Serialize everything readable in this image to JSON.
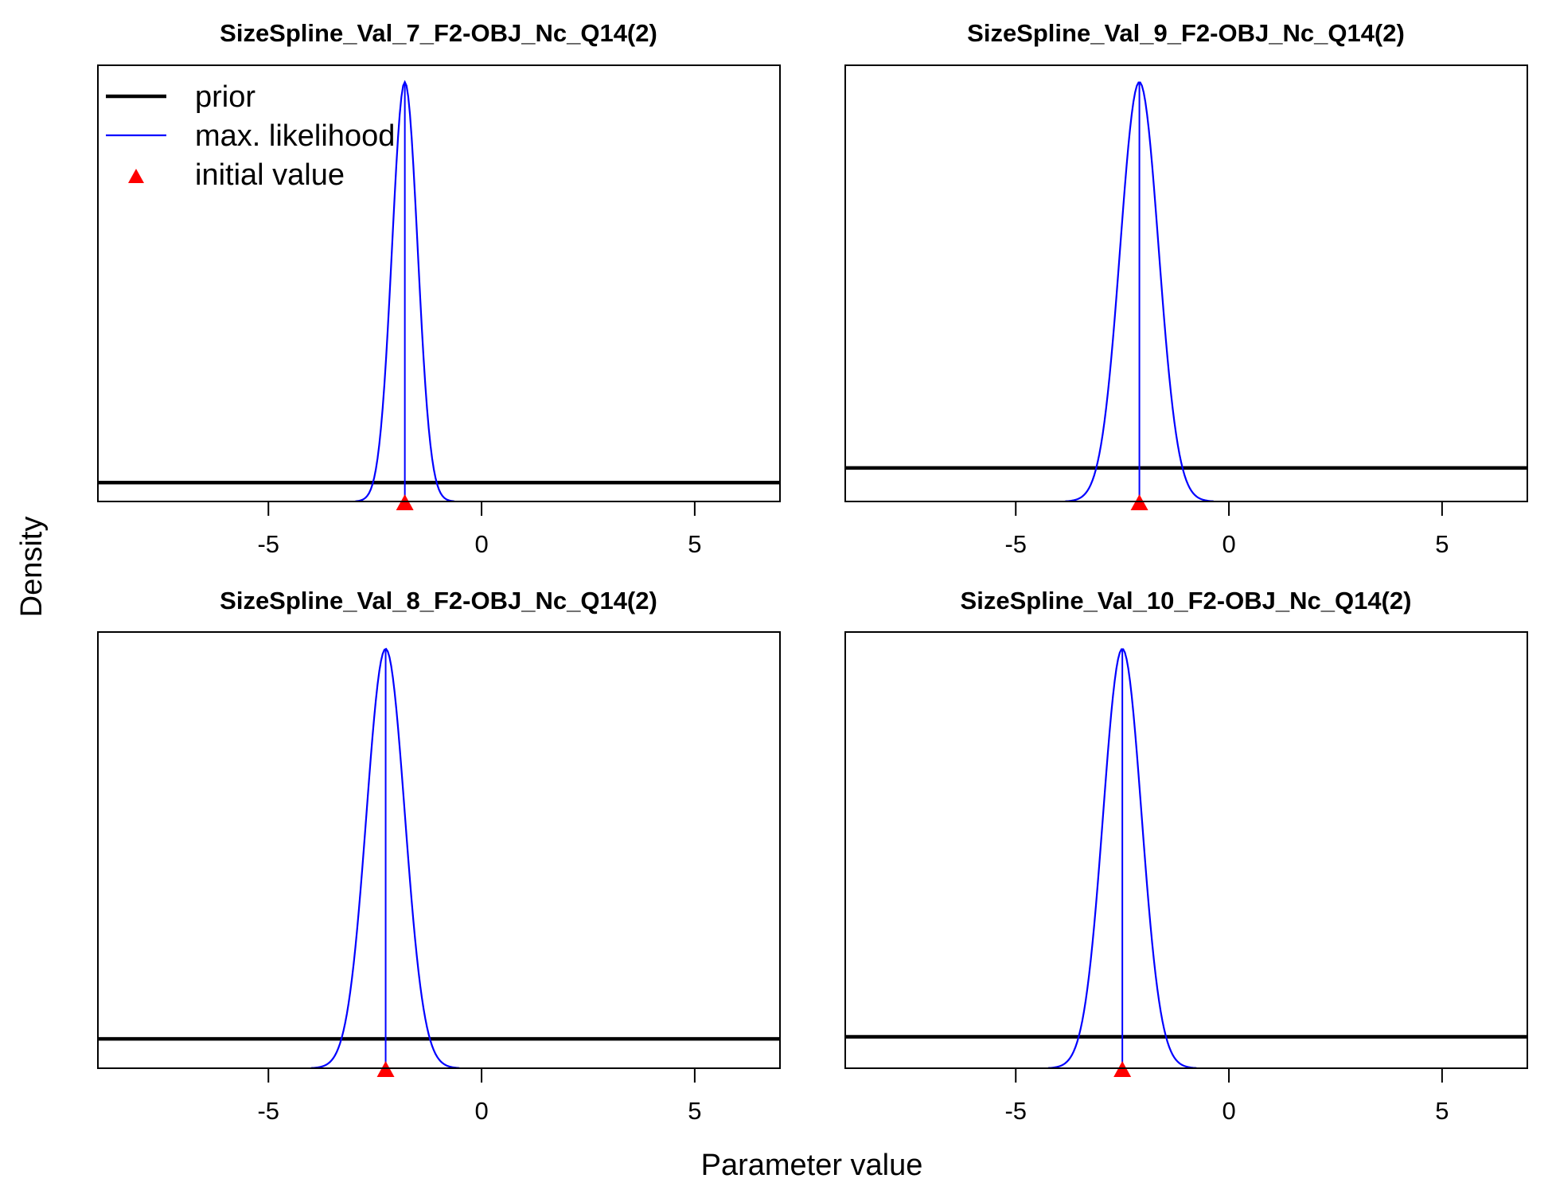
{
  "figure": {
    "xlabel": "Parameter value",
    "ylabel": "Density",
    "legend": {
      "placement": "top-left of first panel",
      "entries": [
        {
          "label": "prior",
          "color": "#000000",
          "style": "thick-line"
        },
        {
          "label": "max. likelihood",
          "color": "#0000ff",
          "style": "thin-line"
        },
        {
          "label": "initial value",
          "color": "#ff0000",
          "style": "triangle"
        }
      ]
    }
  },
  "chart_data": [
    {
      "type": "line",
      "title": "SizeSpline_Val_7_F2-OBJ_Nc_Q14(2)",
      "xlim": [
        -9,
        7
      ],
      "xticks": [
        -5,
        0,
        5
      ],
      "prior_level": 0.045,
      "mle": {
        "mean": -1.8,
        "sd": 0.3,
        "peak": 1.0
      },
      "initial_value": -1.8
    },
    {
      "type": "line",
      "title": "SizeSpline_Val_9_F2-OBJ_Nc_Q14(2)",
      "xlim": [
        -9,
        7
      ],
      "xticks": [
        -5,
        0,
        5
      ],
      "prior_level": 0.08,
      "mle": {
        "mean": -2.1,
        "sd": 0.45,
        "peak": 1.0
      },
      "initial_value": -2.1
    },
    {
      "type": "line",
      "title": "SizeSpline_Val_8_F2-OBJ_Nc_Q14(2)",
      "xlim": [
        -9,
        7
      ],
      "xticks": [
        -5,
        0,
        5
      ],
      "prior_level": 0.07,
      "mle": {
        "mean": -2.25,
        "sd": 0.45,
        "peak": 1.0
      },
      "initial_value": -2.25
    },
    {
      "type": "line",
      "title": "SizeSpline_Val_10_F2-OBJ_Nc_Q14(2)",
      "xlim": [
        -9,
        7
      ],
      "xticks": [
        -5,
        0,
        5
      ],
      "prior_level": 0.075,
      "mle": {
        "mean": -2.5,
        "sd": 0.45,
        "peak": 1.0
      },
      "initial_value": -2.5
    }
  ]
}
